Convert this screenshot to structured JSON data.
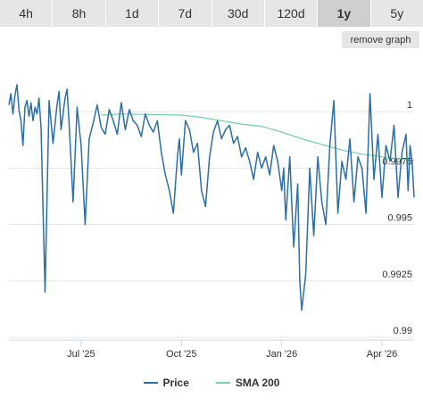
{
  "tabs": [
    {
      "label": "4h",
      "active": false
    },
    {
      "label": "8h",
      "active": false
    },
    {
      "label": "1d",
      "active": false
    },
    {
      "label": "7d",
      "active": false
    },
    {
      "label": "30d",
      "active": false
    },
    {
      "label": "120d",
      "active": false
    },
    {
      "label": "1y",
      "active": true
    },
    {
      "label": "5y",
      "active": false
    }
  ],
  "remove_graph_label": "remove graph",
  "colors": {
    "price": "#2b6fa6",
    "sma": "#6fd3a4",
    "grid": "#e6e6e6"
  },
  "chart_data": {
    "type": "line",
    "y_ticks": [
      "1",
      "0.9975",
      "0.995",
      "0.9925",
      "0.99"
    ],
    "y_tick_values": [
      1.0,
      0.9975,
      0.995,
      0.9925,
      0.99
    ],
    "ylim": [
      0.99,
      1.0025
    ],
    "x_ticks": [
      "Jul '25",
      "Oct '25",
      "Jan '26",
      "Apr '26"
    ],
    "x_tick_values": [
      2025.5,
      2025.75,
      2026.0,
      2026.25
    ],
    "xlim": [
      2025.32,
      2026.33
    ],
    "series": [
      {
        "name": "Price",
        "color_key": "price",
        "x": [
          2025.32,
          2025.325,
          2025.33,
          2025.335,
          2025.34,
          2025.345,
          2025.35,
          2025.355,
          2025.36,
          2025.365,
          2025.37,
          2025.375,
          2025.38,
          2025.385,
          2025.39,
          2025.395,
          2025.4,
          2025.41,
          2025.42,
          2025.43,
          2025.44,
          2025.445,
          2025.45,
          2025.46,
          2025.465,
          2025.47,
          2025.48,
          2025.49,
          2025.5,
          2025.51,
          2025.52,
          2025.53,
          2025.54,
          2025.55,
          2025.56,
          2025.57,
          2025.58,
          2025.59,
          2025.6,
          2025.61,
          2025.62,
          2025.63,
          2025.64,
          2025.65,
          2025.66,
          2025.67,
          2025.68,
          2025.69,
          2025.7,
          2025.71,
          2025.72,
          2025.73,
          2025.74,
          2025.745,
          2025.75,
          2025.76,
          2025.77,
          2025.78,
          2025.79,
          2025.8,
          2025.81,
          2025.82,
          2025.83,
          2025.84,
          2025.85,
          2025.86,
          2025.87,
          2025.88,
          2025.89,
          2025.9,
          2025.91,
          2025.92,
          2025.93,
          2025.94,
          2025.95,
          2025.96,
          2025.97,
          2025.98,
          2025.99,
          2026.0,
          2026.005,
          2026.01,
          2026.02,
          2026.025,
          2026.03,
          2026.04,
          2026.045,
          2026.05,
          2026.06,
          2026.07,
          2026.08,
          2026.09,
          2026.1,
          2026.11,
          2026.12,
          2026.13,
          2026.14,
          2026.15,
          2026.16,
          2026.17,
          2026.18,
          2026.19,
          2026.2,
          2026.21,
          2026.22,
          2026.23,
          2026.24,
          2026.25,
          2026.26,
          2026.27,
          2026.28,
          2026.29,
          2026.3,
          2026.31,
          2026.315,
          2026.32,
          2026.325,
          2026.33
        ],
        "values": [
          1.0003,
          1.0008,
          0.9999,
          1.0007,
          1.0012,
          1.0001,
          0.9996,
          0.9985,
          1.0002,
          1.0005,
          0.9998,
          1.0004,
          0.9996,
          1.0002,
          0.9999,
          1.0006,
          0.9993,
          0.992,
          1.0005,
          0.9986,
          1.0003,
          1.0009,
          0.9992,
          1.0006,
          1.001,
          0.9995,
          0.996,
          1.0002,
          0.9985,
          0.995,
          0.9988,
          0.9995,
          1.0003,
          0.9993,
          0.999,
          1.0001,
          0.9996,
          0.999,
          1.0004,
          0.9992,
          1.0001,
          0.9996,
          0.9994,
          0.9989,
          0.9999,
          0.9994,
          0.9991,
          0.9996,
          0.9982,
          0.9972,
          0.9965,
          0.9955,
          0.998,
          0.9988,
          0.9972,
          0.9996,
          0.9992,
          0.9982,
          0.9986,
          0.9965,
          0.9958,
          0.998,
          0.9991,
          0.9996,
          0.9988,
          0.9992,
          0.9994,
          0.9986,
          0.9989,
          0.998,
          0.9984,
          0.9978,
          0.997,
          0.9982,
          0.9975,
          0.998,
          0.9972,
          0.9985,
          0.9978,
          0.9965,
          0.9975,
          0.9952,
          0.998,
          0.996,
          0.994,
          0.9968,
          0.9925,
          0.9912,
          0.9928,
          0.9975,
          0.9945,
          0.998,
          0.996,
          0.995,
          0.9985,
          1.0005,
          0.9955,
          0.9978,
          0.997,
          0.9988,
          0.996,
          0.998,
          0.9975,
          0.9955,
          1.0008,
          0.997,
          0.999,
          0.9962,
          0.9985,
          0.9978,
          0.9994,
          0.9962,
          0.9982,
          0.999,
          0.9965,
          0.9985,
          0.9978,
          0.9962
        ]
      },
      {
        "name": "SMA 200",
        "color_key": "sma",
        "x": [
          2025.55,
          2025.6,
          2025.65,
          2025.7,
          2025.75,
          2025.8,
          2025.85,
          2025.9,
          2025.95,
          2026.0,
          2026.05,
          2026.1,
          2026.15,
          2026.2,
          2026.25,
          2026.3,
          2026.33
        ],
        "values": [
          0.99985,
          0.9999,
          0.99988,
          0.99987,
          0.99985,
          0.99975,
          0.9996,
          0.99945,
          0.99935,
          0.9991,
          0.9988,
          0.99855,
          0.9983,
          0.99812,
          0.998,
          0.9979,
          0.99785
        ]
      }
    ],
    "legend": [
      "Price",
      "SMA 200"
    ],
    "legend_position": "bottom-center",
    "grid": true
  }
}
